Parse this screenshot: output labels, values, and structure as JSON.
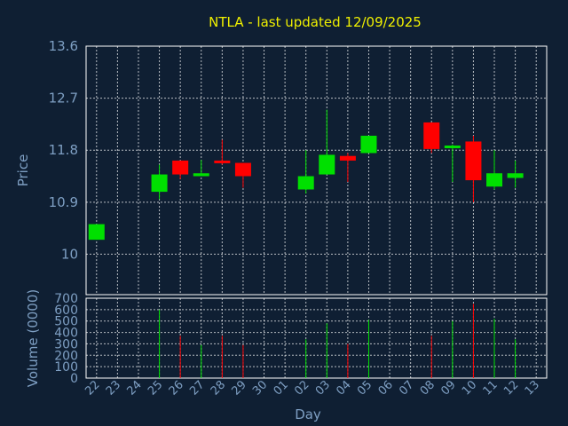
{
  "colors": {
    "background": "#0f1f33",
    "up": "#00e000",
    "down": "#ff0000",
    "grid": "#ffffff",
    "text": "#7e9fc3",
    "title": "#f0f000"
  },
  "chart_data": {
    "type": "candlestick",
    "title": "NTLA - last updated 12/09/2025",
    "xlabel": "Day",
    "ylabel": "Price",
    "volume_label": "Volume (0000)",
    "grid": true,
    "price_ylim": [
      9.3,
      13.6
    ],
    "price_ticks": [
      "10",
      "10.9",
      "11.8",
      "12.7",
      "13.6"
    ],
    "volume_ylim": [
      0,
      700
    ],
    "volume_ticks": [
      "0",
      "100",
      "200",
      "300",
      "400",
      "500",
      "600",
      "700"
    ],
    "days": [
      "22",
      "23",
      "24",
      "25",
      "26",
      "27",
      "28",
      "29",
      "30",
      "01",
      "02",
      "03",
      "04",
      "05",
      "06",
      "07",
      "08",
      "09",
      "10",
      "11",
      "12",
      "13"
    ],
    "candles": [
      {
        "day": "22",
        "open": 10.25,
        "high": 10.52,
        "low": 10.25,
        "close": 10.52,
        "volume": 0
      },
      {
        "day": "25",
        "open": 11.08,
        "high": 11.55,
        "low": 10.95,
        "close": 11.38,
        "volume": 600
      },
      {
        "day": "26",
        "open": 11.62,
        "high": 11.62,
        "low": 11.3,
        "close": 11.38,
        "volume": 370
      },
      {
        "day": "27",
        "open": 11.35,
        "high": 11.63,
        "low": 11.35,
        "close": 11.4,
        "volume": 290
      },
      {
        "day": "28",
        "open": 11.62,
        "high": 11.98,
        "low": 11.55,
        "close": 11.58,
        "volume": 370
      },
      {
        "day": "29",
        "open": 11.58,
        "high": 11.58,
        "low": 11.15,
        "close": 11.35,
        "volume": 290
      },
      {
        "day": "02",
        "open": 11.12,
        "high": 11.8,
        "low": 11.05,
        "close": 11.35,
        "volume": 340
      },
      {
        "day": "03",
        "open": 11.38,
        "high": 12.5,
        "low": 11.38,
        "close": 11.72,
        "volume": 480
      },
      {
        "day": "04",
        "open": 11.7,
        "high": 11.75,
        "low": 11.25,
        "close": 11.62,
        "volume": 300
      },
      {
        "day": "05",
        "open": 11.75,
        "high": 12.05,
        "low": 11.75,
        "close": 12.05,
        "volume": 510
      },
      {
        "day": "08",
        "open": 12.28,
        "high": 12.28,
        "low": 11.75,
        "close": 11.82,
        "volume": 370
      },
      {
        "day": "09",
        "open": 11.85,
        "high": 11.9,
        "low": 11.25,
        "close": 11.88,
        "volume": 500
      },
      {
        "day": "10",
        "open": 11.95,
        "high": 12.05,
        "low": 10.9,
        "close": 11.28,
        "volume": 650
      },
      {
        "day": "11",
        "open": 11.17,
        "high": 11.8,
        "low": 11.12,
        "close": 11.4,
        "volume": 520
      },
      {
        "day": "12",
        "open": 11.32,
        "high": 11.62,
        "low": 11.15,
        "close": 11.4,
        "volume": 340
      }
    ]
  }
}
